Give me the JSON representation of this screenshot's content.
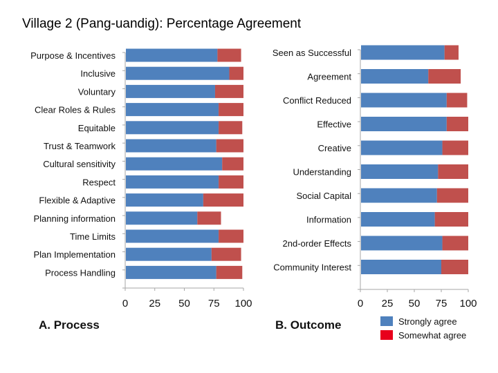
{
  "title": "Village 2 (Pang-uandig): Percentage Agreement",
  "colors": {
    "strongly": "#4F81BD",
    "somewhat": "#C0504D",
    "somewhat_swatch": "#E8001C",
    "axis": "#A6A6A6"
  },
  "legend": {
    "strongly_label": "Strongly agree",
    "somewhat_label": "Somewhat agree"
  },
  "chart_data": [
    {
      "type": "bar",
      "orientation": "horizontal",
      "stacked": true,
      "caption": "A. Process",
      "categories": [
        "Purpose & Incentives",
        "Inclusive",
        "Voluntary",
        "Clear Roles & Rules",
        "Equitable",
        "Trust & Teamwork",
        "Cultural sensitivity",
        "Respect",
        "Flexible & Adaptive",
        "Planning information",
        "Time Limits",
        "Plan Implementation",
        "Process Handling"
      ],
      "series": [
        {
          "name": "Strongly agree",
          "values": [
            78,
            88,
            76,
            79,
            79,
            77,
            82,
            79,
            66,
            61,
            79,
            73,
            77
          ]
        },
        {
          "name": "Somewhat agree",
          "values": [
            20,
            12,
            24,
            21,
            20,
            23,
            18,
            21,
            34,
            20,
            21,
            25,
            22
          ]
        }
      ],
      "xlim": [
        0,
        100
      ],
      "xticks": [
        "0",
        "25",
        "50",
        "75",
        "100"
      ]
    },
    {
      "type": "bar",
      "orientation": "horizontal",
      "stacked": true,
      "caption": "B. Outcome",
      "categories": [
        "Seen as Successful",
        "Agreement",
        "Conflict Reduced",
        "Effective",
        "Creative",
        "Understanding",
        "Social Capital",
        "Information",
        "2nd-order Effects",
        "Community Interest"
      ],
      "series": [
        {
          "name": "Strongly agree",
          "values": [
            78,
            63,
            80,
            80,
            76,
            72,
            71,
            69,
            76,
            75
          ]
        },
        {
          "name": "Somewhat agree",
          "values": [
            13,
            30,
            19,
            20,
            24,
            28,
            29,
            31,
            24,
            25
          ]
        }
      ],
      "xlim": [
        0,
        100
      ],
      "xticks": [
        "0",
        "25",
        "50",
        "75",
        "100"
      ]
    }
  ]
}
